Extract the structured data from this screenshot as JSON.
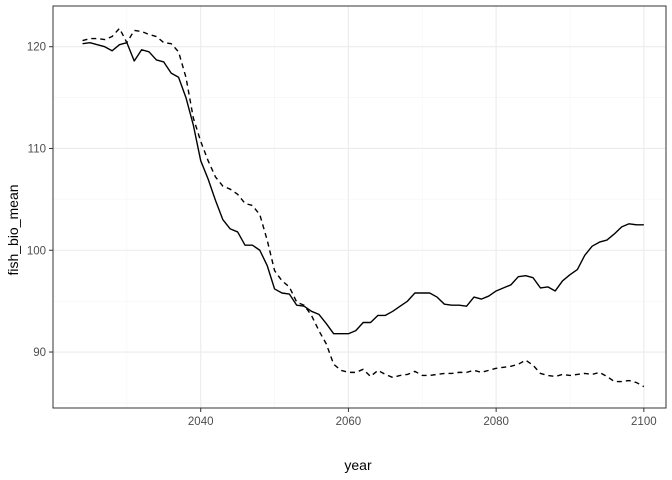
{
  "chart_data": {
    "type": "line",
    "xlabel": "year",
    "ylabel": "fish_bio_mean",
    "xlim": [
      2020,
      2103
    ],
    "ylim": [
      84.5,
      124
    ],
    "x_ticks": [
      2040,
      2060,
      2080,
      2100
    ],
    "x_tick_labels": [
      "2040",
      "2060",
      "2080",
      "2100"
    ],
    "y_ticks": [
      90,
      100,
      110,
      120
    ],
    "y_tick_labels": [
      "90",
      "100",
      "110",
      "120"
    ],
    "grid": true,
    "legend": "none",
    "series": [
      {
        "line_style": "solid",
        "color": "#000000",
        "x": [
          2024,
          2025,
          2026,
          2027,
          2028,
          2029,
          2030,
          2031,
          2032,
          2033,
          2034,
          2035,
          2036,
          2037,
          2038,
          2039,
          2040,
          2041,
          2042,
          2043,
          2044,
          2045,
          2046,
          2047,
          2048,
          2049,
          2050,
          2051,
          2052,
          2053,
          2054,
          2055,
          2056,
          2057,
          2058,
          2059,
          2060,
          2061,
          2062,
          2063,
          2064,
          2065,
          2066,
          2067,
          2068,
          2069,
          2070,
          2071,
          2072,
          2073,
          2074,
          2075,
          2076,
          2077,
          2078,
          2079,
          2080,
          2081,
          2082,
          2083,
          2084,
          2085,
          2086,
          2087,
          2088,
          2089,
          2090,
          2091,
          2092,
          2093,
          2094,
          2095,
          2096,
          2097,
          2098,
          2099,
          2100
        ],
        "y": [
          120.3,
          120.4,
          120.2,
          120.0,
          119.6,
          120.2,
          120.4,
          118.6,
          119.7,
          119.5,
          118.7,
          118.5,
          117.4,
          117.0,
          115.0,
          112.3,
          108.8,
          107.0,
          104.9,
          103.0,
          102.1,
          101.8,
          100.5,
          100.5,
          100.0,
          98.5,
          96.2,
          95.8,
          95.7,
          94.6,
          94.5,
          94.0,
          93.7,
          92.8,
          91.8,
          91.8,
          91.8,
          92.1,
          92.9,
          92.9,
          93.6,
          93.6,
          94.0,
          94.5,
          95.0,
          95.8,
          95.8,
          95.8,
          95.4,
          94.7,
          94.6,
          94.6,
          94.5,
          95.4,
          95.2,
          95.5,
          96.0,
          96.3,
          96.6,
          97.4,
          97.5,
          97.3,
          96.3,
          96.4,
          96.0,
          97.0,
          97.6,
          98.1,
          99.5,
          100.4,
          100.8,
          101.0,
          101.6,
          102.3,
          102.6,
          102.5,
          102.5
        ]
      },
      {
        "line_style": "dashed",
        "color": "#000000",
        "x": [
          2024,
          2025,
          2026,
          2027,
          2028,
          2029,
          2030,
          2031,
          2032,
          2033,
          2034,
          2035,
          2036,
          2037,
          2038,
          2039,
          2040,
          2041,
          2042,
          2043,
          2044,
          2045,
          2046,
          2047,
          2048,
          2049,
          2050,
          2051,
          2052,
          2053,
          2054,
          2055,
          2056,
          2057,
          2058,
          2059,
          2060,
          2061,
          2062,
          2063,
          2064,
          2065,
          2066,
          2067,
          2068,
          2069,
          2070,
          2071,
          2072,
          2073,
          2074,
          2075,
          2076,
          2077,
          2078,
          2079,
          2080,
          2081,
          2082,
          2083,
          2084,
          2085,
          2086,
          2087,
          2088,
          2089,
          2090,
          2091,
          2092,
          2093,
          2094,
          2095,
          2096,
          2097,
          2098,
          2099,
          2100
        ],
        "y": [
          120.6,
          120.8,
          120.8,
          120.7,
          121.0,
          121.8,
          120.4,
          121.6,
          121.5,
          121.2,
          121.0,
          120.4,
          120.3,
          119.5,
          117.0,
          113.0,
          110.7,
          108.8,
          107.2,
          106.3,
          106.0,
          105.5,
          104.6,
          104.4,
          103.5,
          101.0,
          98.0,
          97.0,
          96.4,
          94.9,
          94.6,
          93.6,
          92.1,
          90.8,
          88.8,
          88.2,
          88.0,
          88.0,
          88.3,
          87.6,
          88.2,
          87.8,
          87.5,
          87.7,
          87.8,
          88.1,
          87.7,
          87.7,
          87.8,
          87.9,
          87.9,
          88.0,
          88.0,
          88.2,
          88.0,
          88.2,
          88.4,
          88.5,
          88.6,
          88.8,
          89.2,
          88.7,
          87.9,
          87.7,
          87.6,
          87.8,
          87.7,
          87.8,
          87.9,
          87.8,
          88.0,
          87.6,
          87.1,
          87.1,
          87.2,
          87.0,
          86.6
        ]
      }
    ]
  }
}
